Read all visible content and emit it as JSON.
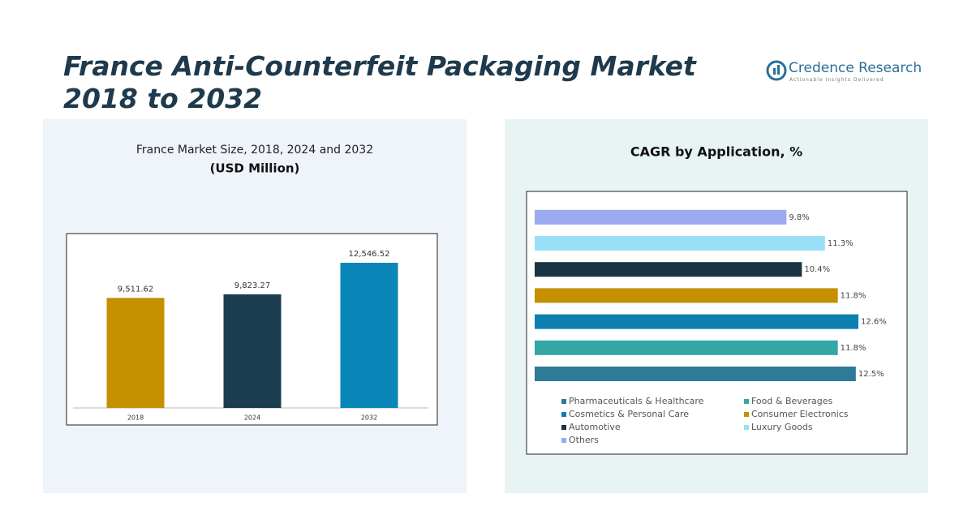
{
  "header": {
    "title": "France Anti-Counterfeit Packaging Market 2018 to 2032",
    "logo": "Credence Research",
    "tagline": "Actionable Insights Delivered"
  },
  "chart_data": [
    {
      "type": "bar",
      "title": "France Market Size, 2018, 2024 and 2032",
      "subtitle": "(USD Million)",
      "categories": [
        "2018",
        "2024",
        "2032"
      ],
      "values": [
        9511.62,
        9823.27,
        12546.52
      ],
      "value_labels": [
        "9,511.62",
        "9,823.27",
        "12,546.52"
      ],
      "colors": [
        "#c49000",
        "#1b3d4f",
        "#0a85b8"
      ]
    },
    {
      "type": "hbar",
      "title": "CAGR by Application, %",
      "categories": [
        "Pharmaceuticals & Healthcare",
        "Food & Beverages",
        "Cosmetics & Personal Care",
        "Consumer Electronics",
        "Automotive",
        "Luxury Goods",
        "Others"
      ],
      "values": [
        12.5,
        11.8,
        12.6,
        11.8,
        10.4,
        11.3,
        9.8
      ],
      "value_labels": [
        "12.5%",
        "11.8%",
        "12.6%",
        "11.8%",
        "10.4%",
        "11.3%",
        "9.8%"
      ],
      "colors": [
        "#2d7a99",
        "#35a5a5",
        "#0a7fb0",
        "#c49000",
        "#1b3444",
        "#99e0f7",
        "#9aa9f0"
      ],
      "legend": "bottom"
    }
  ]
}
